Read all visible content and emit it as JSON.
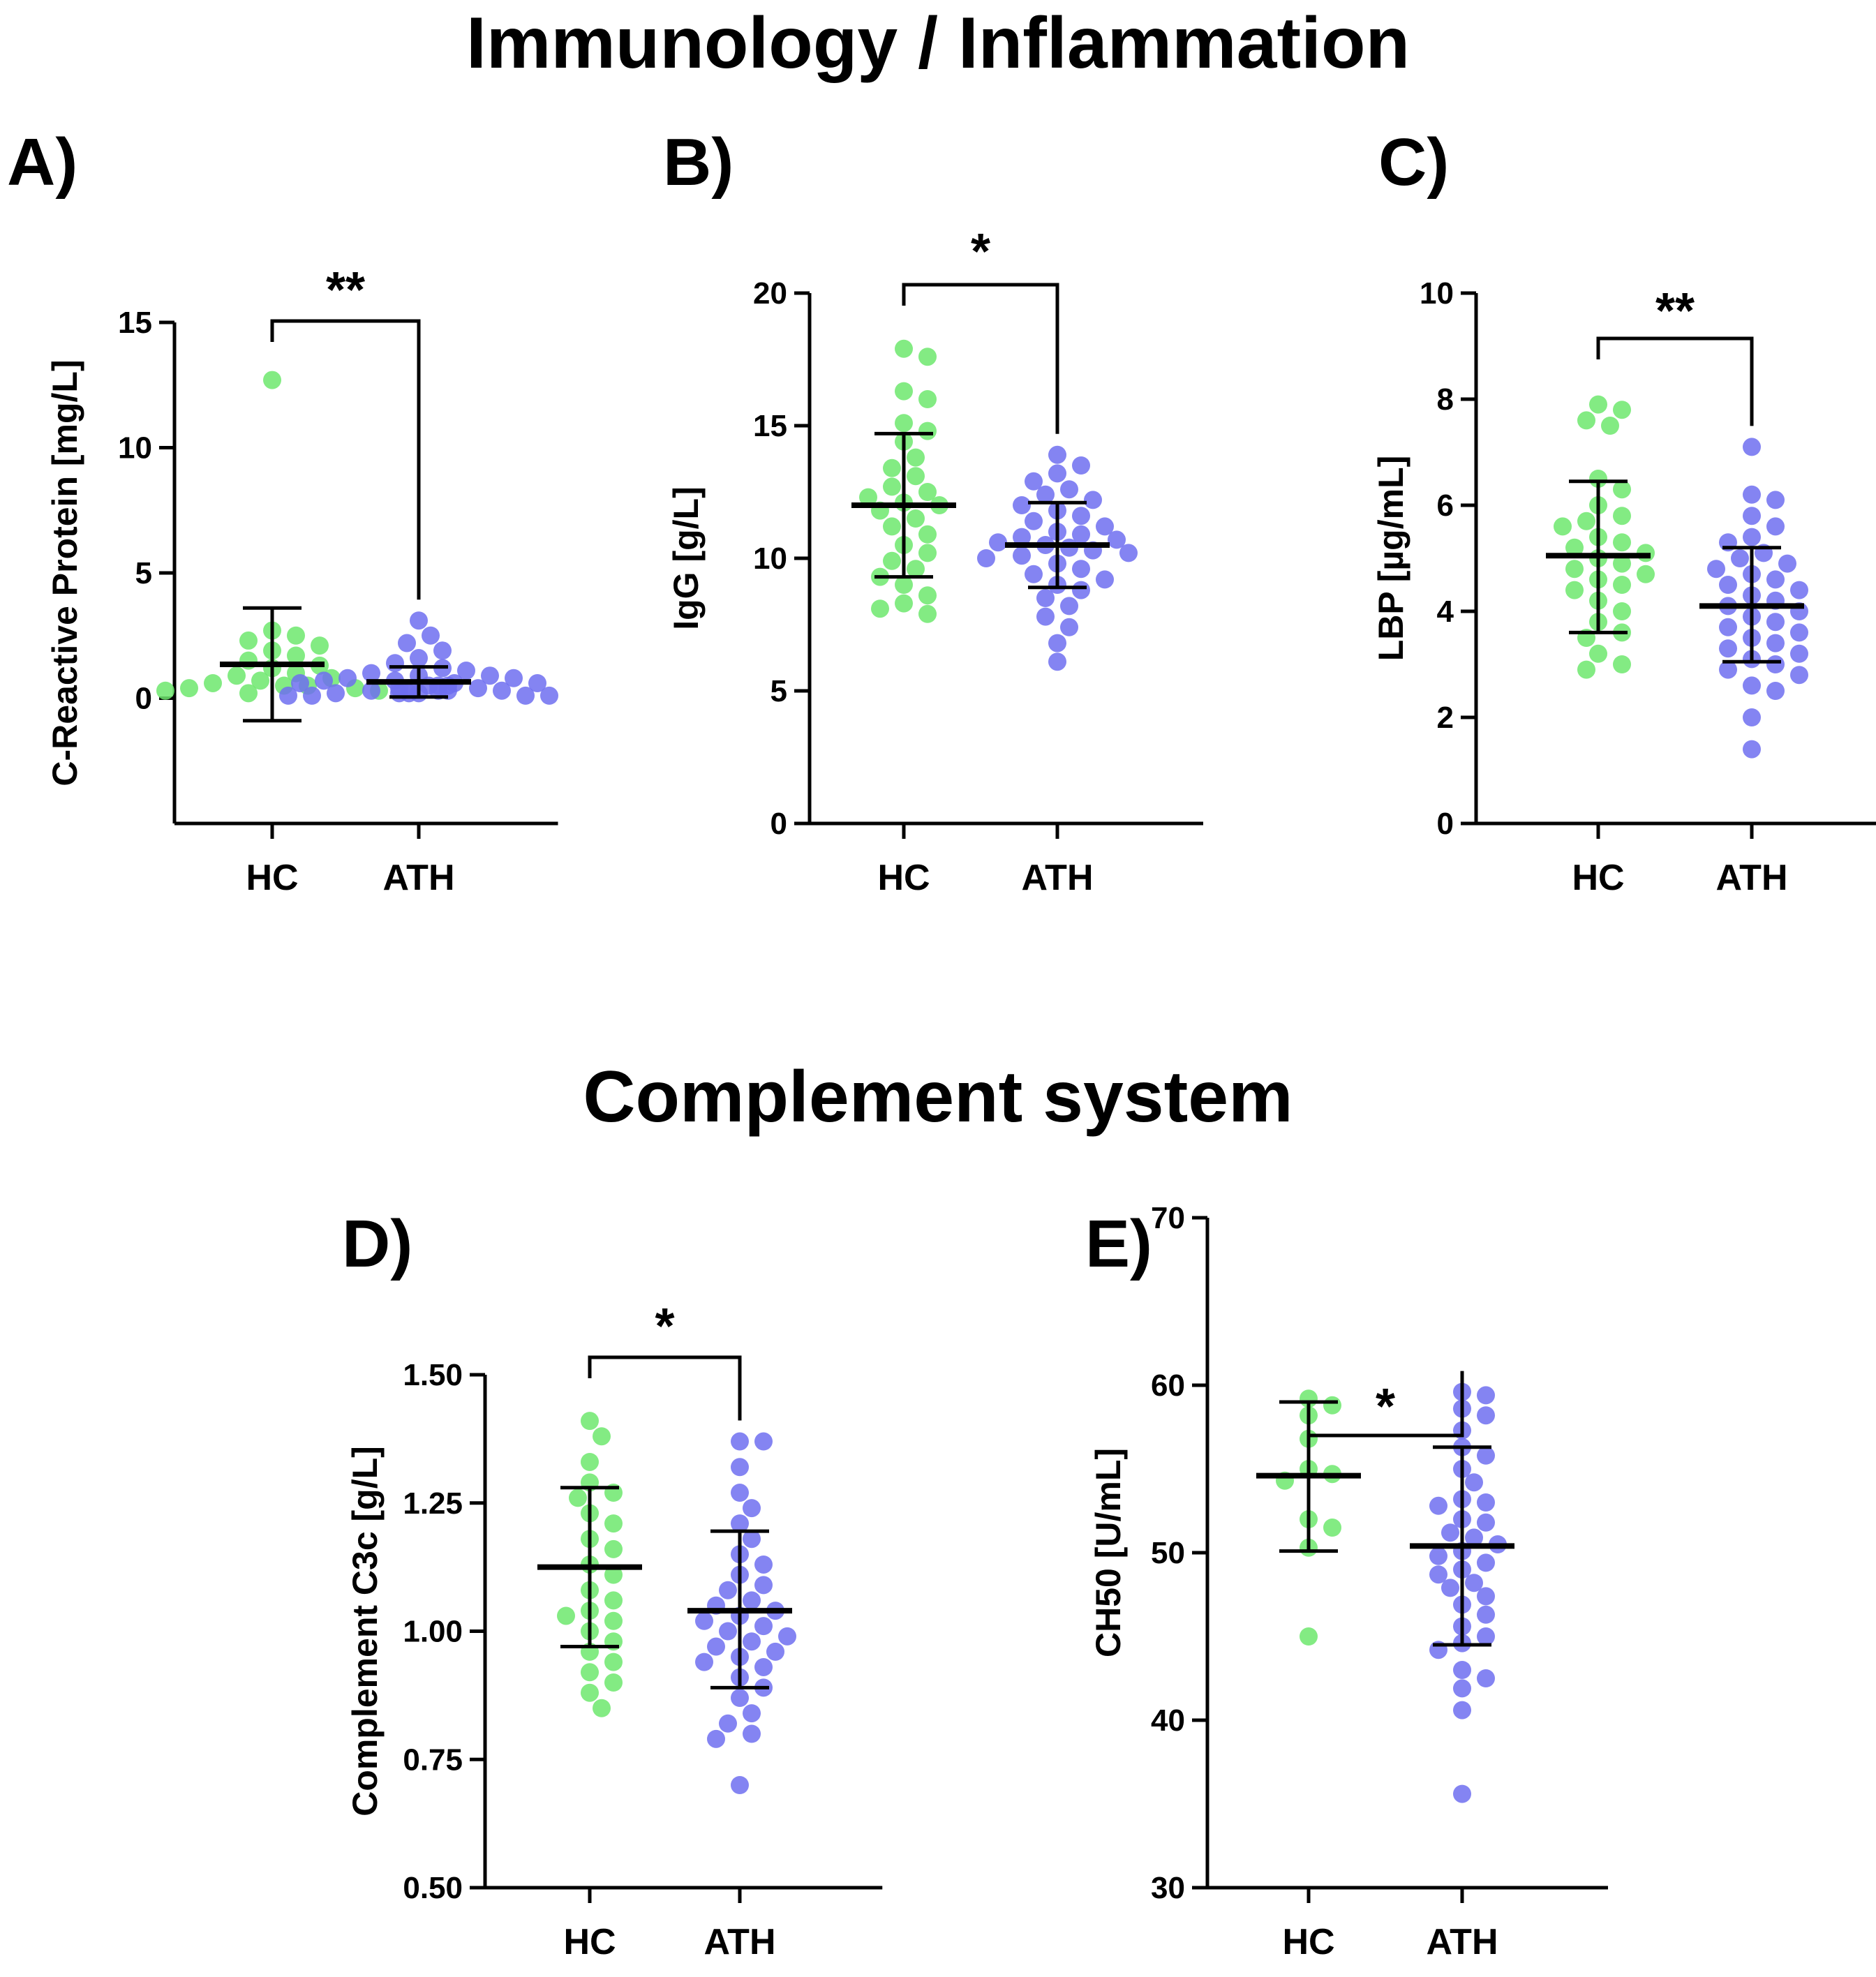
{
  "section_titles": {
    "top": "Immunology / Inflammation",
    "bottom": "Complement system"
  },
  "colors": {
    "HC": "#6de86d",
    "ATH": "#6f6ff0",
    "ATH_dense": "#1f1fe8",
    "axis": "#000000"
  },
  "chart_data": [
    {
      "panel": "A)",
      "type": "scatter",
      "ylabel": "C-Reactive Protein [mg/L]",
      "categories": [
        "HC",
        "ATH"
      ],
      "ylim": [
        -5,
        15
      ],
      "yticks": [
        0,
        5,
        10,
        15
      ],
      "significance": "**",
      "series": [
        {
          "name": "HC",
          "mean": 1.35,
          "sd_low": -0.9,
          "sd_high": 3.6,
          "values": [
            12.7,
            2.7,
            2.5,
            2.3,
            2.1,
            1.9,
            1.7,
            1.5,
            1.3,
            1.2,
            1.0,
            0.9,
            0.8,
            0.7,
            0.6,
            0.5,
            0.5,
            0.4,
            0.4,
            0.3,
            0.3,
            0.2
          ]
        },
        {
          "name": "ATH",
          "mean": 0.65,
          "sd_low": 0.05,
          "sd_high": 1.25,
          "values": [
            3.1,
            2.5,
            2.2,
            1.9,
            1.6,
            1.4,
            1.2,
            1.1,
            1.0,
            0.9,
            0.9,
            0.8,
            0.8,
            0.7,
            0.7,
            0.6,
            0.6,
            0.6,
            0.5,
            0.5,
            0.5,
            0.4,
            0.4,
            0.4,
            0.3,
            0.3,
            0.3,
            0.3,
            0.2,
            0.2,
            0.2,
            0.2,
            0.1,
            0.1,
            0.1,
            0.1
          ]
        }
      ]
    },
    {
      "panel": "B)",
      "type": "scatter",
      "ylabel": "IgG [g/L]",
      "categories": [
        "HC",
        "ATH"
      ],
      "ylim": [
        0,
        20
      ],
      "yticks": [
        0,
        5,
        10,
        15,
        20
      ],
      "significance": "*",
      "series": [
        {
          "name": "HC",
          "mean": 12.0,
          "sd_low": 9.3,
          "sd_high": 14.7,
          "values": [
            17.9,
            17.6,
            16.3,
            16.0,
            15.1,
            14.8,
            14.4,
            13.8,
            13.4,
            13.1,
            12.7,
            12.5,
            12.3,
            12.1,
            12.0,
            11.8,
            11.5,
            11.2,
            10.9,
            10.5,
            10.2,
            9.9,
            9.6,
            9.3,
            9.0,
            8.6,
            8.3,
            8.1,
            7.9
          ]
        },
        {
          "name": "ATH",
          "mean": 10.5,
          "sd_low": 8.9,
          "sd_high": 12.1,
          "values": [
            13.9,
            13.5,
            13.2,
            12.9,
            12.6,
            12.4,
            12.2,
            12.0,
            11.8,
            11.6,
            11.4,
            11.2,
            11.0,
            10.9,
            10.8,
            10.7,
            10.6,
            10.5,
            10.4,
            10.3,
            10.2,
            10.1,
            10.0,
            9.8,
            9.6,
            9.4,
            9.2,
            9.0,
            8.8,
            8.5,
            8.2,
            7.8,
            7.4,
            6.8,
            6.1
          ]
        }
      ]
    },
    {
      "panel": "C)",
      "type": "scatter",
      "ylabel": "LBP [µg/mL]",
      "categories": [
        "HC",
        "ATH"
      ],
      "ylim": [
        0,
        10
      ],
      "yticks": [
        0,
        2,
        4,
        6,
        8,
        10
      ],
      "significance": "**",
      "series": [
        {
          "name": "HC",
          "mean": 5.05,
          "sd_low": 3.6,
          "sd_high": 6.45,
          "values": [
            7.9,
            7.8,
            7.6,
            7.5,
            6.5,
            6.3,
            6.0,
            5.8,
            5.7,
            5.6,
            5.4,
            5.3,
            5.2,
            5.1,
            5.0,
            4.9,
            4.8,
            4.7,
            4.6,
            4.5,
            4.4,
            4.2,
            4.0,
            3.8,
            3.6,
            3.5,
            3.2,
            3.0,
            2.9
          ]
        },
        {
          "name": "ATH",
          "mean": 4.1,
          "sd_low": 3.05,
          "sd_high": 5.2,
          "values": [
            7.1,
            6.2,
            6.1,
            5.8,
            5.6,
            5.4,
            5.3,
            5.1,
            5.0,
            4.9,
            4.8,
            4.7,
            4.6,
            4.5,
            4.4,
            4.3,
            4.2,
            4.1,
            4.0,
            3.9,
            3.8,
            3.7,
            3.6,
            3.5,
            3.4,
            3.3,
            3.2,
            3.1,
            3.0,
            2.9,
            2.8,
            2.6,
            2.5,
            2.0,
            1.4
          ]
        }
      ]
    },
    {
      "panel": "D)",
      "type": "scatter",
      "ylabel": "Complement C3c [g/L]",
      "categories": [
        "HC",
        "ATH"
      ],
      "ylim": [
        0.5,
        1.5
      ],
      "yticks": [
        0.5,
        0.75,
        1.0,
        1.25,
        1.5
      ],
      "ytick_labels": [
        "0.50",
        "0.75",
        "1.00",
        "1.25",
        "1.50"
      ],
      "significance": "*",
      "series": [
        {
          "name": "HC",
          "mean": 1.125,
          "sd_low": 0.97,
          "sd_high": 1.28,
          "values": [
            1.41,
            1.38,
            1.33,
            1.29,
            1.27,
            1.26,
            1.23,
            1.21,
            1.18,
            1.16,
            1.13,
            1.11,
            1.08,
            1.06,
            1.04,
            1.03,
            1.02,
            1.0,
            0.98,
            0.96,
            0.94,
            0.92,
            0.9,
            0.88,
            0.85
          ]
        },
        {
          "name": "ATH",
          "mean": 1.04,
          "sd_low": 0.89,
          "sd_high": 1.195,
          "values": [
            1.37,
            1.37,
            1.32,
            1.27,
            1.24,
            1.21,
            1.18,
            1.15,
            1.13,
            1.11,
            1.09,
            1.08,
            1.06,
            1.05,
            1.04,
            1.03,
            1.02,
            1.01,
            1.0,
            0.99,
            0.98,
            0.97,
            0.96,
            0.95,
            0.94,
            0.93,
            0.91,
            0.89,
            0.87,
            0.84,
            0.82,
            0.8,
            0.79,
            0.7
          ]
        }
      ]
    },
    {
      "panel": "E)",
      "type": "scatter",
      "ylabel": "CH50 [U/mL]",
      "categories": [
        "HC",
        "ATH"
      ],
      "ylim": [
        30,
        70
      ],
      "yticks": [
        30,
        40,
        50,
        60,
        70
      ],
      "significance": "*",
      "series": [
        {
          "name": "HC",
          "mean": 54.6,
          "sd_low": 50.1,
          "sd_high": 59.0,
          "values": [
            59.2,
            58.8,
            58.2,
            56.8,
            55.0,
            54.7,
            54.3,
            52.0,
            51.5,
            50.3,
            45.0
          ]
        },
        {
          "name": "ATH",
          "mean": 50.4,
          "sd_low": 44.5,
          "sd_high": 56.3,
          "values": [
            59.6,
            59.4,
            58.6,
            58.2,
            57.3,
            56.3,
            55.8,
            55.0,
            54.2,
            53.2,
            53.0,
            52.8,
            52.0,
            51.8,
            51.2,
            50.9,
            50.5,
            50.1,
            49.8,
            49.4,
            49.0,
            48.7,
            48.2,
            47.9,
            47.4,
            46.9,
            46.3,
            45.6,
            45.0,
            44.6,
            44.2,
            43.0,
            42.5,
            41.9,
            40.6,
            35.6
          ]
        }
      ]
    }
  ]
}
